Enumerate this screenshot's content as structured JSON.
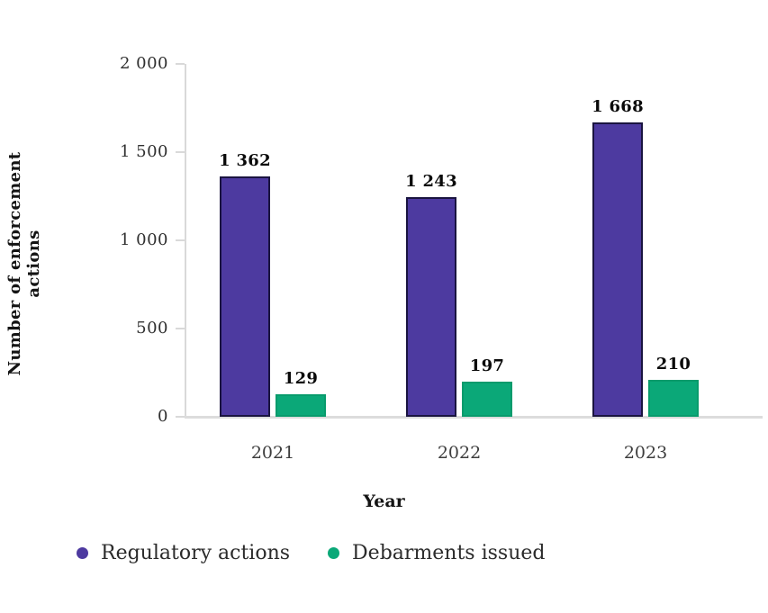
{
  "figure": {
    "y_axis_title": "Number of enforcement actions",
    "x_axis_title": "Year"
  },
  "chart_data": {
    "type": "bar",
    "title": "",
    "categories": [
      "2021",
      "2022",
      "2023"
    ],
    "series": [
      {
        "name": "Regulatory actions",
        "color": "#4d3aa0",
        "border_color": "#1a1440",
        "values": [
          1362,
          1243,
          1668
        ],
        "value_labels": [
          "1 362",
          "1 243",
          "1 668"
        ]
      },
      {
        "name": "Debarments issued",
        "color": "#0ba878",
        "border_color": "#089b6c",
        "values": [
          129,
          197,
          210
        ],
        "value_labels": [
          "129",
          "197",
          "210"
        ]
      }
    ],
    "xlabel": "Year",
    "ylabel": "Number of enforcement actions",
    "ylim": [
      0,
      2000
    ],
    "yticks": [
      0,
      500,
      1000,
      1500,
      2000
    ],
    "ytick_labels": [
      "0",
      "500",
      "1 000",
      "1 500",
      "2 000"
    ],
    "grid": false,
    "legend_position": "bottom-left"
  },
  "legend": {
    "items": [
      {
        "label": "Regulatory actions",
        "color": "#4d3aa0"
      },
      {
        "label": "Debarments issued",
        "color": "#0ba878"
      }
    ]
  }
}
